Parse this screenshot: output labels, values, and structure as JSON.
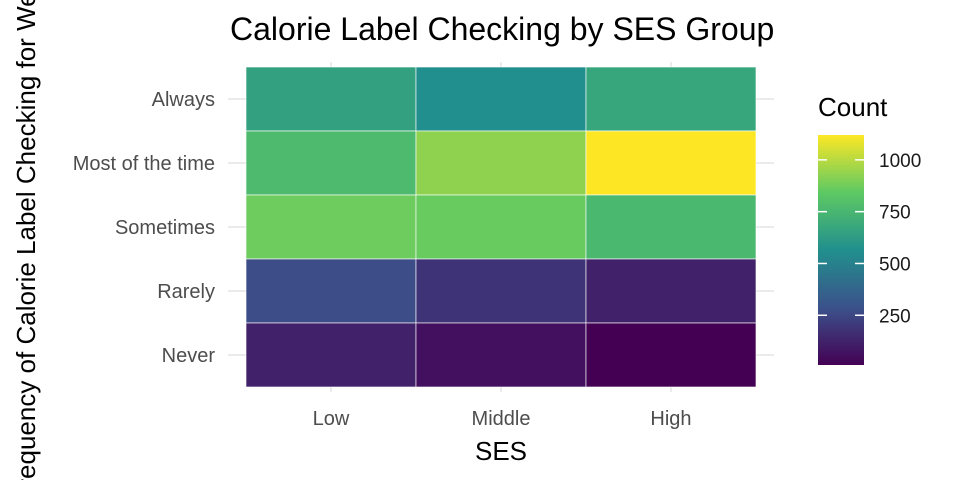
{
  "chart_data": {
    "type": "heatmap",
    "title": "Calorie Label Checking by SES Group",
    "xlabel": "SES",
    "ylabel": "Frequency of Calorie Label Checking for Weight",
    "x_categories": [
      "Low",
      "Middle",
      "High"
    ],
    "y_categories": [
      "Always",
      "Most of the time",
      "Sometimes",
      "Rarely",
      "Never"
    ],
    "values": [
      [
        650,
        560,
        670
      ],
      [
        770,
        930,
        1120
      ],
      [
        870,
        860,
        760
      ],
      [
        270,
        180,
        120
      ],
      [
        120,
        60,
        10
      ]
    ],
    "legend": {
      "title": "Count",
      "position": "right",
      "ticks": [
        250,
        500,
        750,
        1000
      ],
      "min": 10,
      "max": 1120
    },
    "colormap": "viridis",
    "colors": [
      "#440154",
      "#3b528b",
      "#21908d",
      "#5dc963",
      "#fde725"
    ],
    "grid": true
  }
}
